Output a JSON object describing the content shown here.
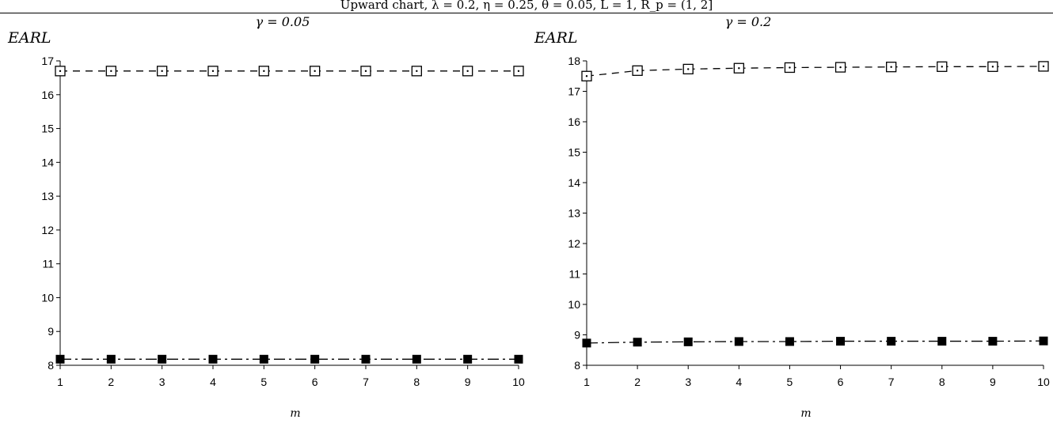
{
  "header": {
    "caption": "Upward chart, λ = 0.2, η = 0.25, θ = 0.05, L = 1, R_p = (1, 2]"
  },
  "chart_data": [
    {
      "type": "line",
      "title": "γ = 0.05",
      "xlabel": "m",
      "ylabel": "EARL",
      "x": [
        1,
        2,
        3,
        4,
        5,
        6,
        7,
        8,
        9,
        10
      ],
      "xticks": [
        "1",
        "2",
        "3",
        "4",
        "5",
        "6",
        "7",
        "8",
        "9",
        "10"
      ],
      "ylim": [
        8,
        17
      ],
      "yticks": [
        "8",
        "9",
        "10",
        "11",
        "12",
        "13",
        "14",
        "15",
        "16",
        "17"
      ],
      "grid": false,
      "series": [
        {
          "marker": "open-square-dot",
          "line": "dashed",
          "color": "#000000",
          "values": [
            16.7,
            16.7,
            16.7,
            16.7,
            16.7,
            16.7,
            16.7,
            16.7,
            16.7,
            16.7
          ]
        },
        {
          "marker": "filled-square",
          "line": "dash-dot",
          "color": "#000000",
          "values": [
            8.18,
            8.18,
            8.18,
            8.18,
            8.18,
            8.18,
            8.18,
            8.18,
            8.18,
            8.18
          ]
        }
      ]
    },
    {
      "type": "line",
      "title": "γ = 0.2",
      "xlabel": "m",
      "ylabel": "EARL",
      "x": [
        1,
        2,
        3,
        4,
        5,
        6,
        7,
        8,
        9,
        10
      ],
      "xticks": [
        "1",
        "2",
        "3",
        "4",
        "5",
        "6",
        "7",
        "8",
        "9",
        "10"
      ],
      "ylim": [
        8,
        18
      ],
      "yticks": [
        "8",
        "9",
        "10",
        "11",
        "12",
        "13",
        "14",
        "15",
        "16",
        "17",
        "18"
      ],
      "grid": false,
      "series": [
        {
          "marker": "open-square-dot",
          "line": "dashed",
          "color": "#000000",
          "values": [
            17.5,
            17.68,
            17.73,
            17.76,
            17.78,
            17.79,
            17.8,
            17.81,
            17.81,
            17.82
          ]
        },
        {
          "marker": "filled-square",
          "line": "dash-dot",
          "color": "#000000",
          "values": [
            8.73,
            8.76,
            8.77,
            8.78,
            8.78,
            8.79,
            8.79,
            8.79,
            8.79,
            8.8
          ]
        }
      ]
    }
  ]
}
